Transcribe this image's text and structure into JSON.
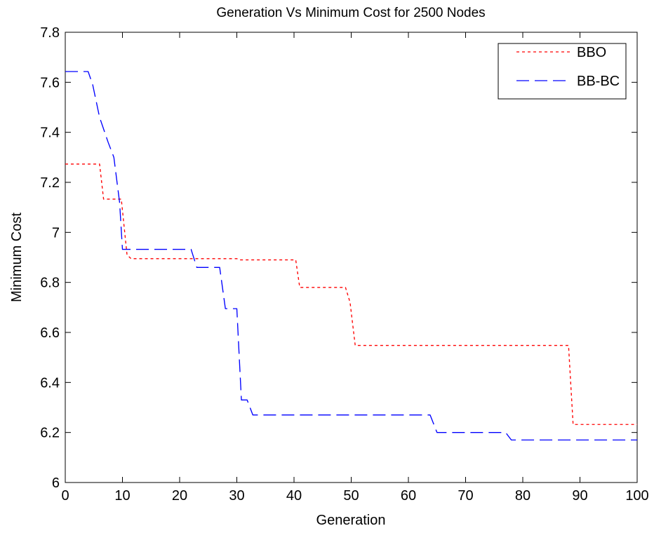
{
  "chart_data": {
    "type": "line",
    "title": "Generation Vs Minimum Cost for 2500 Nodes",
    "xlabel": "Generation",
    "ylabel": "Minimum Cost",
    "xlim": [
      0,
      100
    ],
    "ylim": [
      6,
      7.8
    ],
    "xticks": [
      0,
      10,
      20,
      30,
      40,
      50,
      60,
      70,
      80,
      90,
      100
    ],
    "yticks": [
      6,
      6.2,
      6.4,
      6.6,
      6.8,
      7,
      7.2,
      7.4,
      7.6,
      7.8
    ],
    "grid": false,
    "legend_position": "top-right",
    "series": [
      {
        "name": "BBO",
        "color": "#ff0000",
        "line_style": "dotted",
        "points": [
          [
            0,
            7.273
          ],
          [
            6,
            7.273
          ],
          [
            6.7,
            7.133
          ],
          [
            9.8,
            7.133
          ],
          [
            10.8,
            6.91
          ],
          [
            11.5,
            6.895
          ],
          [
            30,
            6.895
          ],
          [
            30.5,
            6.89
          ],
          [
            40.3,
            6.89
          ],
          [
            41,
            6.78
          ],
          [
            49,
            6.78
          ],
          [
            49.8,
            6.72
          ],
          [
            50.7,
            6.548
          ],
          [
            88,
            6.548
          ],
          [
            88.8,
            6.232
          ],
          [
            100,
            6.232
          ]
        ]
      },
      {
        "name": "BB-BC",
        "color": "#0000ff",
        "line_style": "dashed",
        "points": [
          [
            0,
            7.643
          ],
          [
            4,
            7.643
          ],
          [
            4.8,
            7.59
          ],
          [
            6,
            7.46
          ],
          [
            7.5,
            7.36
          ],
          [
            8.5,
            7.3
          ],
          [
            9.5,
            7.12
          ],
          [
            10,
            6.932
          ],
          [
            22,
            6.932
          ],
          [
            23,
            6.86
          ],
          [
            27,
            6.86
          ],
          [
            28,
            6.695
          ],
          [
            30,
            6.695
          ],
          [
            30.8,
            6.33
          ],
          [
            31.8,
            6.33
          ],
          [
            32.8,
            6.27
          ],
          [
            63.8,
            6.27
          ],
          [
            65,
            6.2
          ],
          [
            77,
            6.2
          ],
          [
            78,
            6.17
          ],
          [
            100,
            6.17
          ]
        ]
      }
    ]
  }
}
